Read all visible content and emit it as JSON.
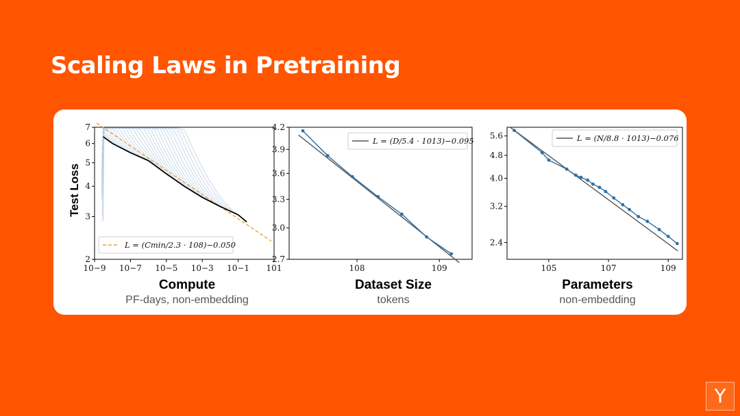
{
  "slide": {
    "title": "Scaling Laws in Pretraining",
    "background": "#ff5500",
    "logo_letter": "Y"
  },
  "chart_data": [
    {
      "type": "line",
      "scale": "log-log",
      "title": "Compute",
      "subtitle": "PF-days, non-embedding",
      "ylabel": "Test Loss",
      "xlim": [
        1e-09,
        10
      ],
      "ylim": [
        2,
        7
      ],
      "x_tick_labels": [
        "10−9",
        "10−7",
        "10−5",
        "10−3",
        "10−1",
        "101"
      ],
      "x_tick_values": [
        1e-09,
        1e-07,
        1e-05,
        0.001,
        0.1,
        10
      ],
      "y_tick_labels": [
        "2",
        "3",
        "4",
        "5",
        "6",
        "7"
      ],
      "y_tick_values": [
        2,
        3,
        4,
        5,
        6,
        7
      ],
      "legend": {
        "position": "bottom-left",
        "label": "L = (Cmin/2.3 · 108)−0.050",
        "style": "dashed",
        "color": "#e8a33d"
      },
      "fit": {
        "coef": 230000000.0,
        "exponent": -0.05
      },
      "frontier": {
        "color": "#000000",
        "x": [
          3e-09,
          1e-08,
          1e-07,
          1e-06,
          1e-05,
          0.0001,
          0.001,
          0.01,
          0.1,
          0.3
        ],
        "y": [
          6.4,
          6.0,
          5.5,
          5.1,
          4.5,
          4.0,
          3.6,
          3.3,
          3.05,
          2.85
        ]
      },
      "runs_color": "#b8cce0"
    },
    {
      "type": "line",
      "scale": "log-log",
      "title": "Dataset Size",
      "subtitle": "tokens",
      "xlim": [
        15000000.0,
        2500000000.0
      ],
      "ylim": [
        2.7,
        4.2
      ],
      "x_tick_labels": [
        "108",
        "109"
      ],
      "x_tick_values": [
        100000000.0,
        1000000000.0
      ],
      "y_tick_labels": [
        "2.7",
        "3.0",
        "3.3",
        "3.6",
        "3.9",
        "4.2"
      ],
      "y_tick_values": [
        2.7,
        3.0,
        3.3,
        3.6,
        3.9,
        4.2
      ],
      "legend": {
        "position": "top-right",
        "label": "L = (D/5.4 · 1013)−0.095",
        "color": "#555555"
      },
      "fit": {
        "coef": 54000000000000.0,
        "exponent": -0.095
      },
      "points": {
        "color": "#2f6fa3",
        "x": [
          22000000.0,
          44000000.0,
          88000000.0,
          180000000.0,
          350000000.0,
          700000000.0,
          1400000000.0
        ],
        "y": [
          4.15,
          3.82,
          3.56,
          3.33,
          3.14,
          2.91,
          2.75
        ]
      }
    },
    {
      "type": "line",
      "scale": "log-log",
      "title": "Parameters",
      "subtitle": "non-embedding",
      "xlim": [
        4000.0,
        3000000000.0
      ],
      "ylim": [
        2.1,
        6.0
      ],
      "x_tick_labels": [
        "105",
        "107",
        "109"
      ],
      "x_tick_values": [
        100000.0,
        10000000.0,
        1000000000.0
      ],
      "y_tick_labels": [
        "2.4",
        "3.2",
        "4.0",
        "4.8",
        "5.6"
      ],
      "y_tick_values": [
        2.4,
        3.2,
        4.0,
        4.8,
        5.6
      ],
      "legend": {
        "position": "top-right",
        "label": "L = (N/8.8 · 1013)−0.076",
        "color": "#555555"
      },
      "fit": {
        "coef": 88000000000000.0,
        "exponent": -0.076
      },
      "points": {
        "color": "#2f6fa3",
        "x": [
          7000.0,
          60000.0,
          100000.0,
          400000.0,
          800000.0,
          1200000.0,
          2000000.0,
          3000000.0,
          5000000.0,
          8000000.0,
          15000000.0,
          30000000.0,
          50000000.0,
          100000000.0,
          200000000.0,
          500000000.0,
          1000000000.0,
          2000000000.0
        ],
        "y": [
          5.85,
          4.9,
          4.62,
          4.3,
          4.1,
          4.03,
          3.94,
          3.82,
          3.72,
          3.6,
          3.42,
          3.24,
          3.12,
          2.95,
          2.84,
          2.66,
          2.52,
          2.38
        ]
      }
    }
  ]
}
